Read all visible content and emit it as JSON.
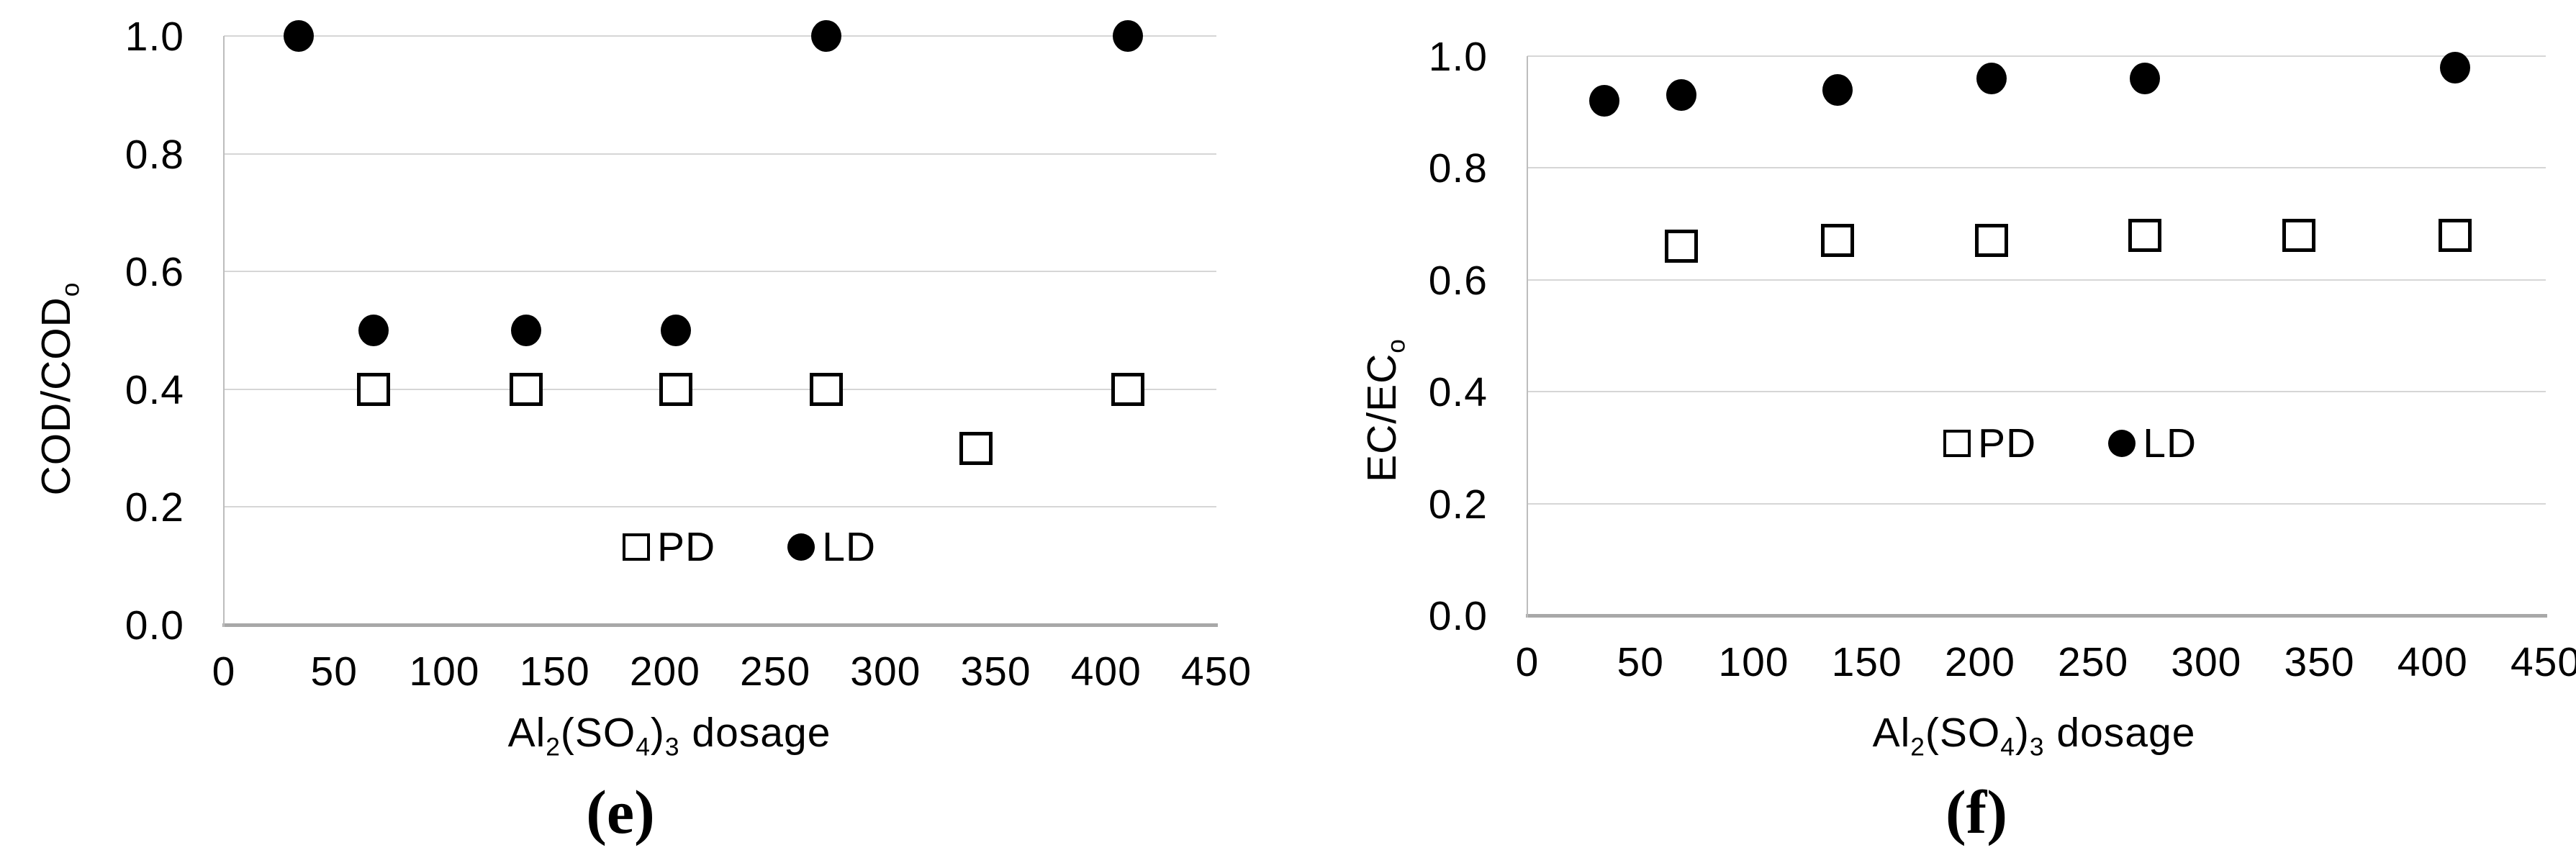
{
  "figure": {
    "background": "#ffffff",
    "description": "Two scatter panels comparing PD and LD treatments versus coagulant dosage"
  },
  "colors": {
    "marker": "#000000",
    "gridline": "#d6d6d6",
    "axis_line": "#a8a8a8",
    "text": "#000000"
  },
  "chart_data": [
    {
      "id": "chart-e",
      "type": "scatter",
      "caption": "(e)",
      "xlabel_text": "Al2(SO4)3 dosage",
      "xlabel_parts": [
        {
          "t": "Al"
        },
        {
          "t": "2",
          "sub": true
        },
        {
          "t": "(SO"
        },
        {
          "t": "4",
          "sub": true
        },
        {
          "t": ")"
        },
        {
          "t": "3",
          "sub": true
        },
        {
          "t": " dosage"
        }
      ],
      "ylabel_text": "COD/CODo",
      "ylabel_parts": [
        {
          "t": "COD/COD"
        },
        {
          "t": "o",
          "sub": true
        }
      ],
      "xlim": [
        0,
        450
      ],
      "ylim": [
        0.0,
        1.0
      ],
      "xticks": [
        0,
        50,
        100,
        150,
        200,
        250,
        300,
        350,
        400,
        450
      ],
      "yticks": [
        "0.0",
        "0.2",
        "0.4",
        "0.6",
        "0.8",
        "1.0"
      ],
      "grid": true,
      "legend": {
        "position": "inside-bottom-center",
        "items": [
          {
            "label": "PD",
            "marker": "open-square"
          },
          {
            "label": "LD",
            "marker": "filled-circle"
          }
        ]
      },
      "series": [
        {
          "name": "PD",
          "marker": "open-square",
          "points": [
            [
              68,
              0.4
            ],
            [
              137,
              0.4
            ],
            [
              205,
              0.4
            ],
            [
              273,
              0.4
            ],
            [
              341,
              0.3
            ],
            [
              410,
              0.4
            ]
          ]
        },
        {
          "name": "LD",
          "marker": "filled-circle",
          "points": [
            [
              34,
              1.0
            ],
            [
              68,
              0.5
            ],
            [
              137,
              0.5
            ],
            [
              205,
              0.5
            ],
            [
              273,
              1.0
            ],
            [
              410,
              1.0
            ]
          ]
        }
      ]
    },
    {
      "id": "chart-f",
      "type": "scatter",
      "caption": "(f)",
      "xlabel_text": "Al2(SO4)3 dosage",
      "xlabel_parts": [
        {
          "t": "Al"
        },
        {
          "t": "2",
          "sub": true
        },
        {
          "t": "(SO"
        },
        {
          "t": "4",
          "sub": true
        },
        {
          "t": ")"
        },
        {
          "t": "3",
          "sub": true
        },
        {
          "t": " dosage"
        }
      ],
      "ylabel_text": "EC/ECo",
      "ylabel_parts": [
        {
          "t": "EC/EC"
        },
        {
          "t": "o",
          "sub": true
        }
      ],
      "xlim": [
        0,
        450
      ],
      "ylim": [
        0.0,
        1.0
      ],
      "xticks": [
        0,
        50,
        100,
        150,
        200,
        250,
        300,
        350,
        400,
        450
      ],
      "yticks": [
        "0.0",
        "0.2",
        "0.4",
        "0.6",
        "0.8",
        "1.0"
      ],
      "grid": true,
      "legend": {
        "position": "inside-middle-center",
        "items": [
          {
            "label": "PD",
            "marker": "open-square"
          },
          {
            "label": "LD",
            "marker": "filled-circle"
          }
        ]
      },
      "series": [
        {
          "name": "PD",
          "marker": "open-square",
          "points": [
            [
              68,
              0.66
            ],
            [
              137,
              0.67
            ],
            [
              205,
              0.67
            ],
            [
              273,
              0.68
            ],
            [
              341,
              0.68
            ],
            [
              410,
              0.68
            ]
          ]
        },
        {
          "name": "LD",
          "marker": "filled-circle",
          "points": [
            [
              34,
              0.92
            ],
            [
              68,
              0.93
            ],
            [
              137,
              0.94
            ],
            [
              205,
              0.96
            ],
            [
              273,
              0.96
            ],
            [
              410,
              0.98
            ]
          ]
        }
      ]
    }
  ]
}
